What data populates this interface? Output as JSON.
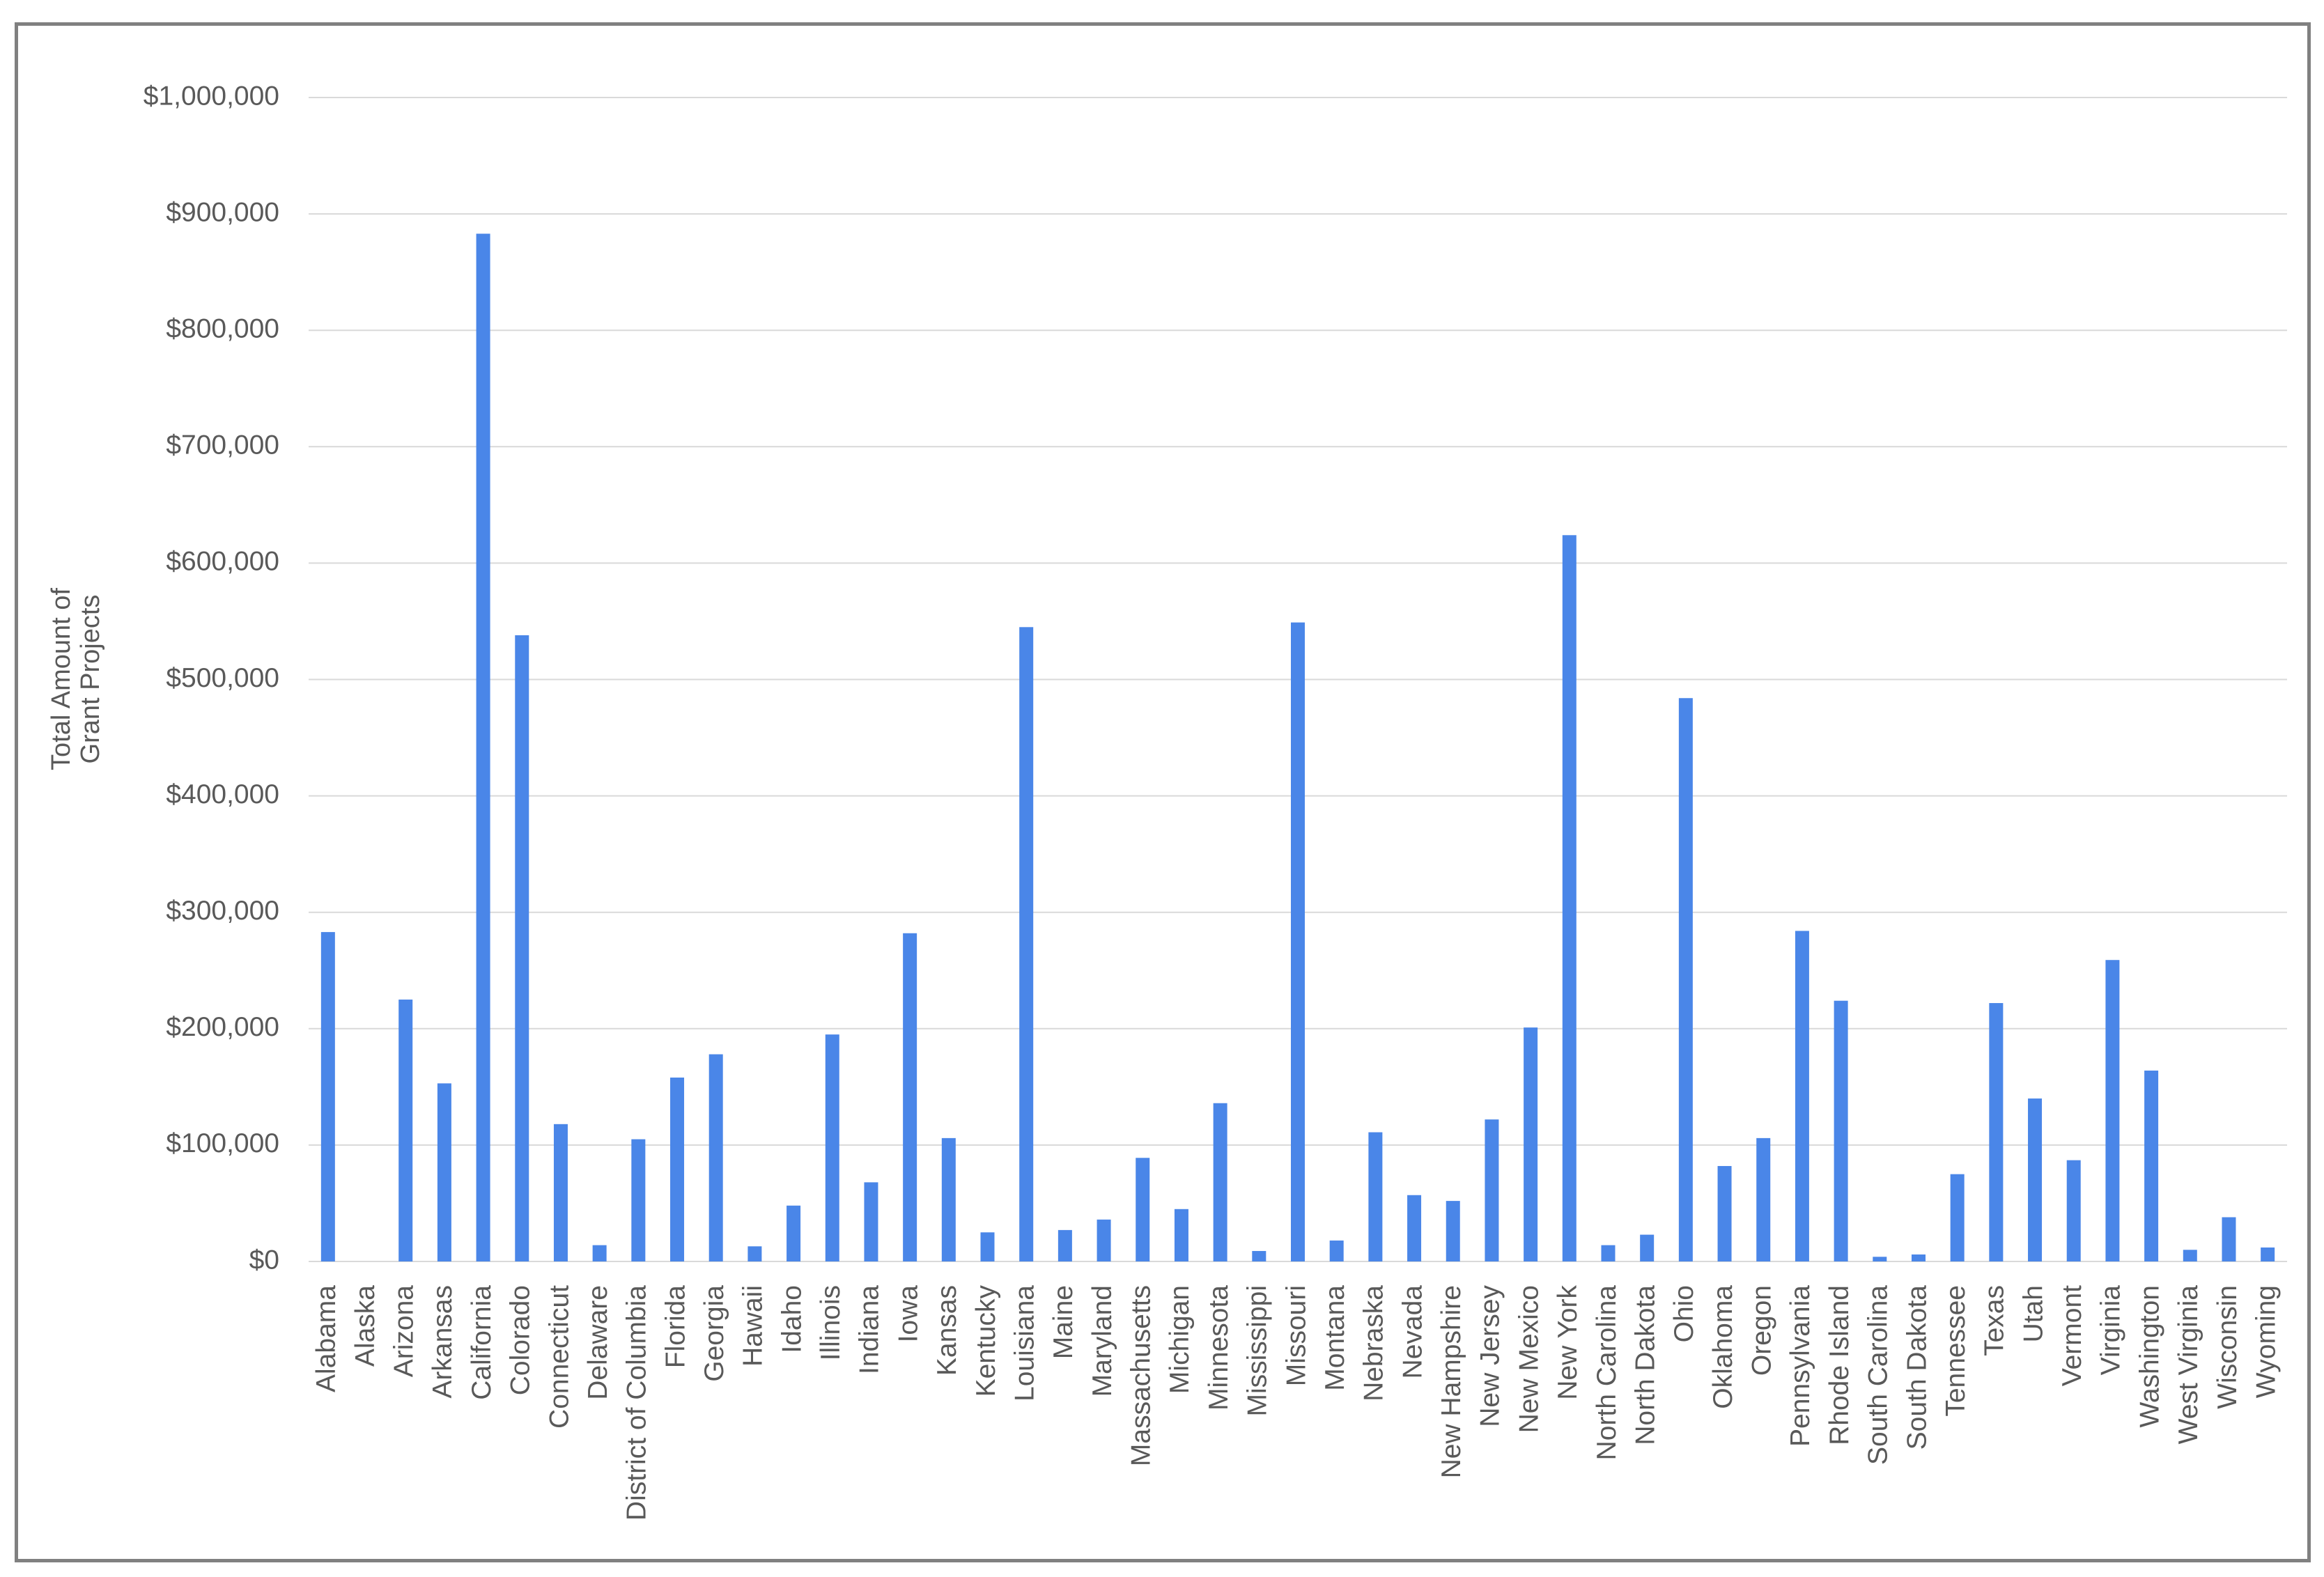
{
  "chart_data": {
    "type": "bar",
    "y_label": "Total Amount of Grant Projects",
    "categories": [
      "Alabama",
      "Alaska",
      "Arizona",
      "Arkansas",
      "California",
      "Colorado",
      "Connecticut",
      "Delaware",
      "District of Columbia",
      "Florida",
      "Georgia",
      "Hawaii",
      "Idaho",
      "Illinois",
      "Indiana",
      "Iowa",
      "Kansas",
      "Kentucky",
      "Louisiana",
      "Maine",
      "Maryland",
      "Massachusetts",
      "Michigan",
      "Minnesota",
      "Mississippi",
      "Missouri",
      "Montana",
      "Nebraska",
      "Nevada",
      "New Hampshire",
      "New Jersey",
      "New Mexico",
      "New York",
      "North Carolina",
      "North Dakota",
      "Ohio",
      "Oklahoma",
      "Oregon",
      "Pennsylvania",
      "Rhode Island",
      "South Carolina",
      "South Dakota",
      "Tennessee",
      "Texas",
      "Utah",
      "Vermont",
      "Virginia",
      "Washington",
      "West Virginia",
      "Wisconsin",
      "Wyoming"
    ],
    "values": [
      283000,
      0,
      225000,
      153000,
      883000,
      538000,
      118000,
      14000,
      105000,
      158000,
      178000,
      13000,
      48000,
      195000,
      68000,
      282000,
      106000,
      25000,
      545000,
      27000,
      36000,
      89000,
      45000,
      136000,
      9000,
      549000,
      18000,
      111000,
      57000,
      52000,
      122000,
      201000,
      624000,
      14000,
      23000,
      484000,
      82000,
      106000,
      284000,
      224000,
      4000,
      6000,
      75000,
      222000,
      140000,
      87000,
      259000,
      164000,
      10000,
      38000,
      12000
    ],
    "color": "#4a86e8",
    "ylim": [
      0,
      1000000
    ],
    "yticks": [
      {
        "value": 0,
        "label": "$0"
      },
      {
        "value": 100000,
        "label": "$100,000"
      },
      {
        "value": 200000,
        "label": "$200,000"
      },
      {
        "value": 300000,
        "label": "$300,000"
      },
      {
        "value": 400000,
        "label": "$400,000"
      },
      {
        "value": 500000,
        "label": "$500,000"
      },
      {
        "value": 600000,
        "label": "$600,000"
      },
      {
        "value": 700000,
        "label": "$700,000"
      },
      {
        "value": 800000,
        "label": "$800,000"
      },
      {
        "value": 900000,
        "label": "$900,000"
      },
      {
        "value": 1000000,
        "label": "$1,000,000"
      }
    ],
    "grid": true
  }
}
